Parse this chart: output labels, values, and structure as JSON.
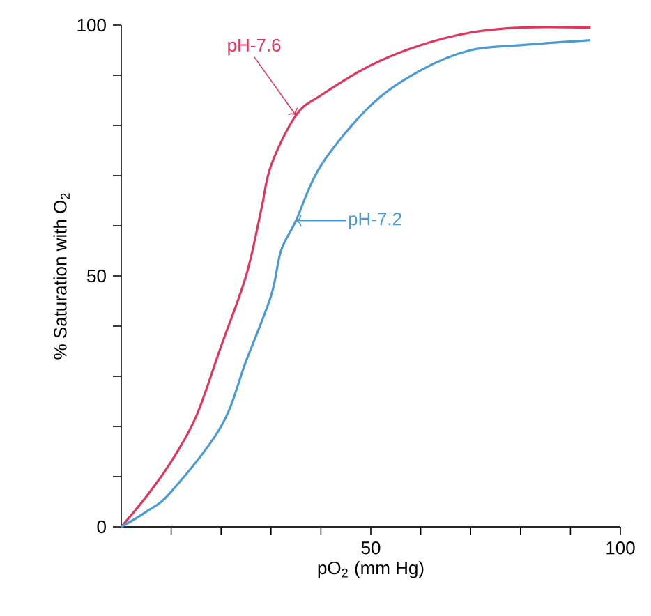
{
  "chart_data": {
    "type": "line",
    "xlabel": "pO$_{2}$ (mm Hg)",
    "ylabel": "% Saturation with O$_{2}$",
    "xlim": [
      0,
      100
    ],
    "ylim": [
      0,
      100
    ],
    "xticks": [
      {
        "value": 10,
        "label": null
      },
      {
        "value": 20,
        "label": null
      },
      {
        "value": 30,
        "label": null
      },
      {
        "value": 40,
        "label": null
      },
      50,
      {
        "value": 60,
        "label": null
      },
      {
        "value": 70,
        "label": null
      },
      {
        "value": 80,
        "label": null
      },
      {
        "value": 90,
        "label": null
      },
      100
    ],
    "yticks": [
      0,
      {
        "value": 10,
        "label": null
      },
      {
        "value": 20,
        "label": null
      },
      {
        "value": 30,
        "label": null
      },
      {
        "value": 40,
        "label": null
      },
      50,
      {
        "value": 60,
        "label": null
      },
      {
        "value": 70,
        "label": null
      },
      {
        "value": 80,
        "label": null
      },
      {
        "value": 90,
        "label": null
      },
      100
    ],
    "grid": false,
    "legend": false,
    "marker": "none",
    "line_style": "solid",
    "series": [
      {
        "color": "#e0365e",
        "x": [
          0,
          5,
          10,
          15,
          20,
          25,
          28,
          30,
          35,
          40,
          50,
          60,
          70,
          80,
          94
        ],
        "values": [
          0,
          6,
          13,
          22,
          36,
          50,
          63,
          72,
          82,
          86,
          92,
          96,
          98.5,
          99.5,
          99.5
        ]
      },
      {
        "color": "#4a9ad4",
        "x": [
          0,
          5,
          10,
          20,
          25,
          30,
          32,
          35,
          40,
          50,
          60,
          70,
          80,
          94
        ],
        "values": [
          0,
          3,
          7,
          20,
          33,
          46,
          55,
          61,
          72,
          84,
          91,
          95,
          96,
          97
        ]
      }
    ],
    "annotations": [
      {
        "text": "pH-7.6",
        "x": 35,
        "y": 82
      },
      {
        "text": "pH-7.2",
        "x": 35,
        "y": 61
      }
    ]
  }
}
